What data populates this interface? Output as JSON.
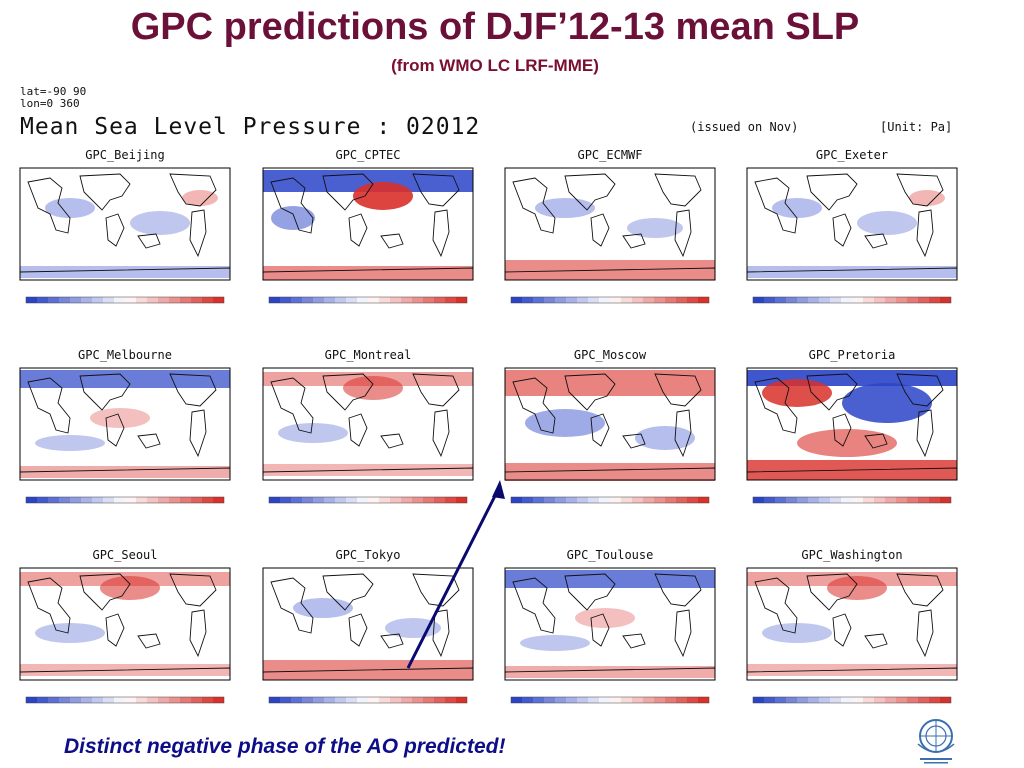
{
  "slide": {
    "title": "GPC predictions of DJF’12-13 mean SLP",
    "subtitle": "(from WMO LC LRF-MME)",
    "caption": "Distinct negative phase of the AO predicted!"
  },
  "figure": {
    "lat_range": "lat=-90 90",
    "lon_range": "lon=0 360",
    "title": "Mean Sea Level Pressure : 02012",
    "issued": "(issued on Nov)",
    "unit": "[Unit: Pa]"
  },
  "panels": [
    {
      "name": "GPC_Beijing",
      "bias": "weak"
    },
    {
      "name": "GPC_CPTEC",
      "bias": "strong-north"
    },
    {
      "name": "GPC_ECMWF",
      "bias": "south-red"
    },
    {
      "name": "GPC_Exeter",
      "bias": "weak"
    },
    {
      "name": "GPC_Melbourne",
      "bias": "north-blue"
    },
    {
      "name": "GPC_Montreal",
      "bias": "north-red"
    },
    {
      "name": "GPC_Moscow",
      "bias": "red-mixed"
    },
    {
      "name": "GPC_Pretoria",
      "bias": "strong-blue"
    },
    {
      "name": "GPC_Seoul",
      "bias": "north-red"
    },
    {
      "name": "GPC_Tokyo",
      "bias": "south-red"
    },
    {
      "name": "GPC_Toulouse",
      "bias": "north-blue"
    },
    {
      "name": "GPC_Washington",
      "bias": "north-red"
    }
  ],
  "colors": {
    "title": "#6b1038",
    "caption": "#0d0d8a",
    "negative": "#2a44c8",
    "positive": "#d9302a",
    "arrow": "#0a0a6e"
  },
  "icons": {
    "logo": "wmo-emblem-icon"
  }
}
